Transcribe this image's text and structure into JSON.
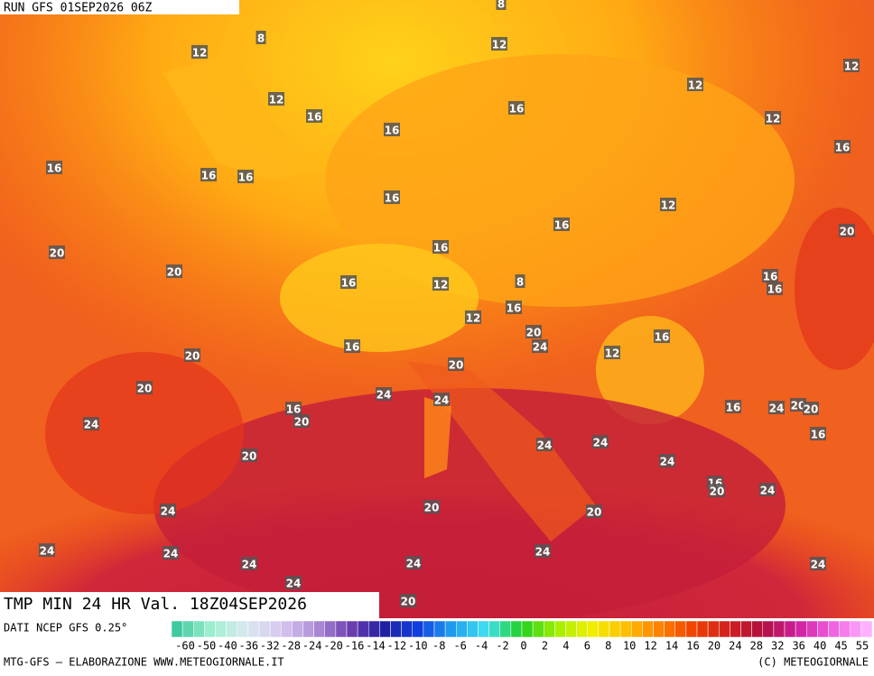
{
  "header": {
    "run": "RUN GFS 01SEP2026 06Z"
  },
  "footer": {
    "title": "TMP MIN 24 HR Val. 18Z04SEP2026",
    "source": "DATI NCEP GFS 0.25°",
    "credit_left": "MTG-GFS — ELABORAZIONE WWW.METEOGIORNALE.IT",
    "credit_right": "(C) METEOGIORNALE"
  },
  "scale": {
    "labels": [
      -60,
      -50,
      -40,
      -36,
      -32,
      -28,
      -24,
      -20,
      -16,
      -14,
      -12,
      -10,
      -8,
      -6,
      -4,
      -2,
      0,
      2,
      4,
      6,
      8,
      10,
      12,
      14,
      16,
      20,
      24,
      28,
      32,
      36,
      40,
      45,
      55
    ]
  },
  "map_labels": [
    8,
    12,
    8,
    12,
    12,
    12,
    12,
    16,
    16,
    12,
    16,
    16,
    16,
    16,
    16,
    16,
    12,
    16,
    20,
    20,
    16,
    20,
    16,
    12,
    8,
    16,
    16,
    16,
    12,
    20,
    24,
    16,
    16,
    12,
    20,
    20,
    20,
    24,
    24,
    16,
    20,
    16,
    24,
    20,
    20,
    24,
    16,
    24,
    24,
    20,
    24,
    16,
    20,
    24,
    20,
    20,
    24,
    24,
    24,
    24,
    24,
    24,
    24,
    24,
    20
  ]
}
